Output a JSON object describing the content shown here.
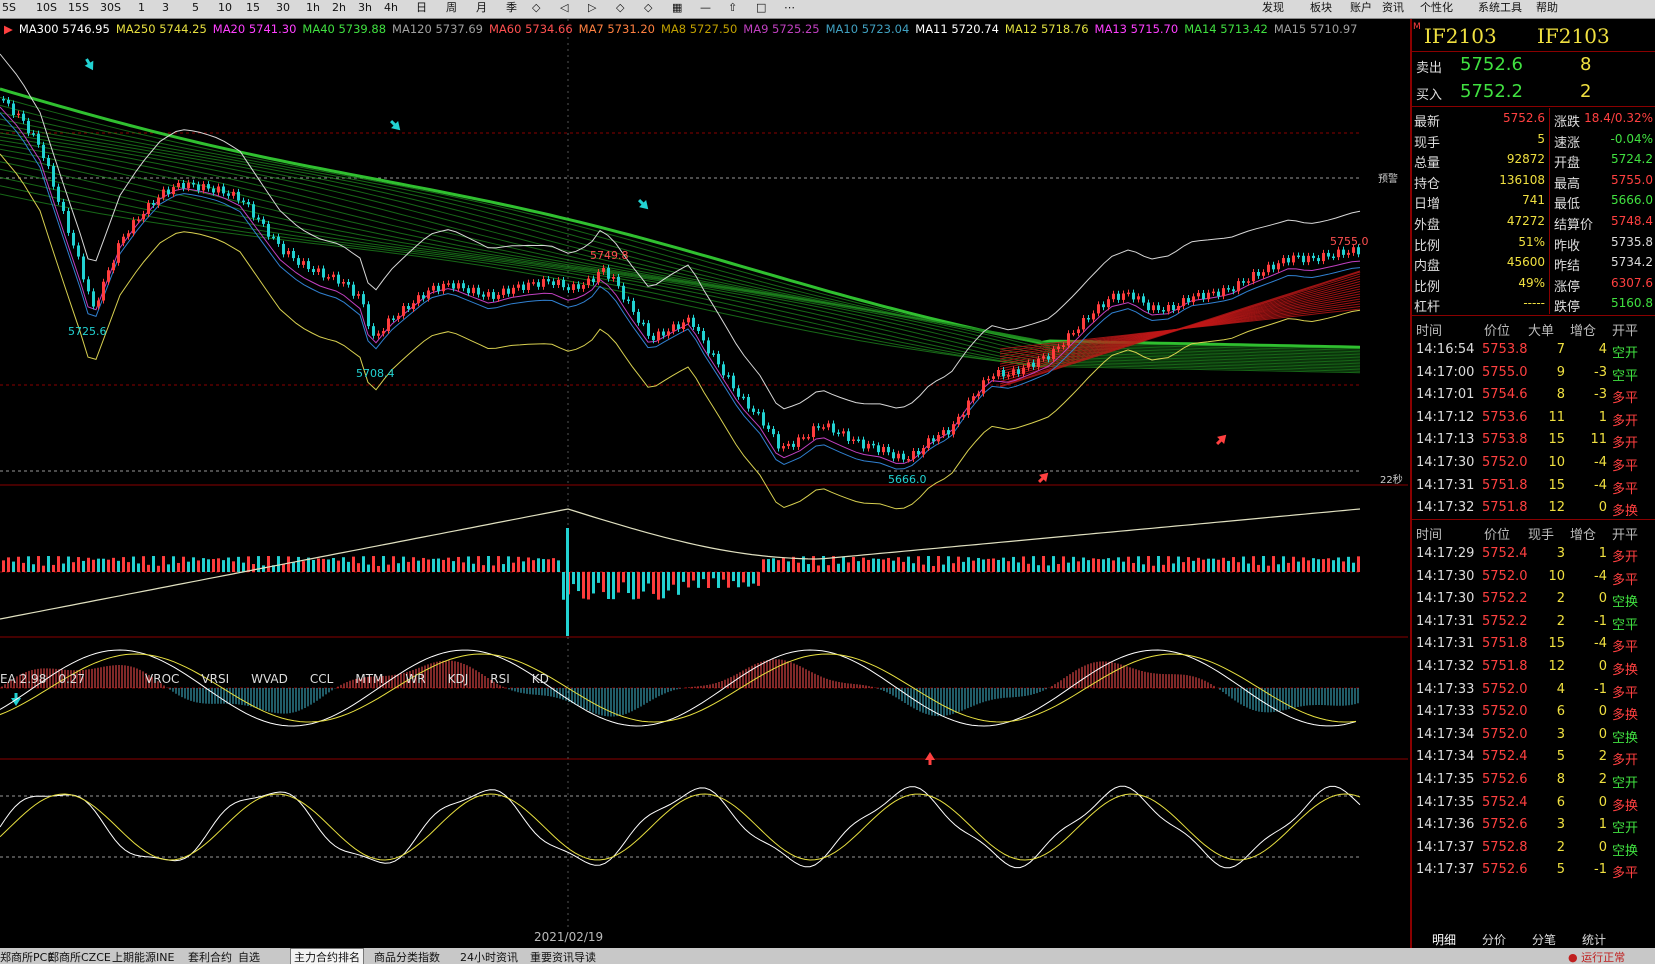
{
  "toolbar": {
    "periods": [
      "5S",
      "10S",
      "15S",
      "30S",
      "1",
      "3",
      "5",
      "10",
      "15",
      "30",
      "1h",
      "2h",
      "3h",
      "4h",
      "日",
      "周",
      "月",
      "季"
    ],
    "right_menu": [
      "发现",
      "板块",
      "账户",
      "资讯",
      "个性化",
      "系统工具",
      "帮助"
    ]
  },
  "ma_legend": [
    {
      "label": "MA300 5746.95",
      "color": "#ffffff"
    },
    {
      "label": "MA250 5744.25",
      "color": "#e8e040"
    },
    {
      "label": "MA20 5741.30",
      "color": "#ff40ff"
    },
    {
      "label": "MA40 5739.88",
      "color": "#40e040"
    },
    {
      "label": "MA120 5737.69",
      "color": "#a0a0a0"
    },
    {
      "label": "MA60 5734.66",
      "color": "#ff5050"
    },
    {
      "label": "MA7 5731.20",
      "color": "#ff8040"
    },
    {
      "label": "MA8 5727.50",
      "color": "#c0a000"
    },
    {
      "label": "MA9 5725.25",
      "color": "#c040c0"
    },
    {
      "label": "MA10 5723.04",
      "color": "#40a0c0"
    },
    {
      "label": "MA11 5720.74",
      "color": "#ffffff"
    },
    {
      "label": "MA12 5718.76",
      "color": "#e0e040"
    },
    {
      "label": "MA13 5715.70",
      "color": "#ff40ff"
    },
    {
      "label": "MA14 5713.42",
      "color": "#40e040"
    },
    {
      "label": "MA15 5710.97",
      "color": "#a0a0a0"
    }
  ],
  "price_labels": {
    "low1": "5725.6",
    "low2": "5708.4",
    "peak_mid": "5749.8",
    "low3": "5666.0",
    "high": "5755.0",
    "warn": "预警",
    "timer": "22秒"
  },
  "date_label": "2021/02/19",
  "indicator_bar": {
    "first": "EA 2.98",
    "second": "0.27",
    "names": [
      "VROC",
      "VRSI",
      "WVAD",
      "CCL",
      "MTM",
      "WR",
      "KDJ",
      "RSI",
      "KD"
    ]
  },
  "quote": {
    "code_left": "IF2103",
    "code_right": "IF2103",
    "ask_label": "卖出",
    "ask_price": "5752.6",
    "ask_vol": "8",
    "bid_label": "买入",
    "bid_price": "5752.2",
    "bid_vol": "2",
    "rows": [
      {
        "l": "最新",
        "lv": "5752.6",
        "lc": "#ff4040",
        "r": "涨跌",
        "rv": "18.4/0.32%",
        "rc": "#ff4040"
      },
      {
        "l": "现手",
        "lv": "5",
        "lc": "#f0e040",
        "r": "速涨",
        "rv": "-0.04%",
        "rc": "#40e040"
      },
      {
        "l": "总量",
        "lv": "92872",
        "lc": "#f0e040",
        "r": "开盘",
        "rv": "5724.2",
        "rc": "#40e040"
      },
      {
        "l": "持仓",
        "lv": "136108",
        "lc": "#f0e040",
        "r": "最高",
        "rv": "5755.0",
        "rc": "#ff4040"
      },
      {
        "l": "日增",
        "lv": "741",
        "lc": "#f0e040",
        "r": "最低",
        "rv": "5666.0",
        "rc": "#40e040"
      },
      {
        "l": "外盘",
        "lv": "47272",
        "lc": "#f0e040",
        "r": "结算价",
        "rv": "5748.4",
        "rc": "#ff4040"
      },
      {
        "l": "比例",
        "lv": "51%",
        "lc": "#f0e040",
        "r": "昨收",
        "rv": "5735.8",
        "rc": "#dddddd"
      },
      {
        "l": "内盘",
        "lv": "45600",
        "lc": "#f0e040",
        "r": "昨结",
        "rv": "5734.2",
        "rc": "#dddddd"
      },
      {
        "l": "比例",
        "lv": "49%",
        "lc": "#f0e040",
        "r": "涨停",
        "rv": "6307.6",
        "rc": "#ff4040"
      },
      {
        "l": "杠杆",
        "lv": "-----",
        "lc": "#f0e040",
        "r": "跌停",
        "rv": "5160.8",
        "rc": "#40e040"
      }
    ]
  },
  "big_trades": {
    "headers": [
      "时间",
      "价位",
      "大单",
      "增仓",
      "开平"
    ],
    "rows": [
      [
        "14:16:54",
        "5753.8",
        "7",
        "4",
        "空开"
      ],
      [
        "14:17:00",
        "5755.0",
        "9",
        "-3",
        "空平"
      ],
      [
        "14:17:01",
        "5754.6",
        "8",
        "-3",
        "多平"
      ],
      [
        "14:17:12",
        "5753.6",
        "11",
        "1",
        "多开"
      ],
      [
        "14:17:13",
        "5753.8",
        "15",
        "11",
        "多开"
      ],
      [
        "14:17:30",
        "5752.0",
        "10",
        "-4",
        "多平"
      ],
      [
        "14:17:31",
        "5751.8",
        "15",
        "-4",
        "多平"
      ],
      [
        "14:17:32",
        "5751.8",
        "12",
        "0",
        "多换"
      ]
    ]
  },
  "ticks": {
    "headers": [
      "时间",
      "价位",
      "现手",
      "增仓",
      "开平"
    ],
    "rows": [
      [
        "14:17:29",
        "5752.4",
        "3",
        "1",
        "多开"
      ],
      [
        "14:17:30",
        "5752.0",
        "10",
        "-4",
        "多平"
      ],
      [
        "14:17:30",
        "5752.2",
        "2",
        "0",
        "空换"
      ],
      [
        "14:17:31",
        "5752.2",
        "2",
        "-1",
        "空平"
      ],
      [
        "14:17:31",
        "5751.8",
        "15",
        "-4",
        "多平"
      ],
      [
        "14:17:32",
        "5751.8",
        "12",
        "0",
        "多换"
      ],
      [
        "14:17:33",
        "5752.0",
        "4",
        "-1",
        "多平"
      ],
      [
        "14:17:33",
        "5752.0",
        "6",
        "0",
        "多换"
      ],
      [
        "14:17:34",
        "5752.0",
        "3",
        "0",
        "空换"
      ],
      [
        "14:17:34",
        "5752.4",
        "5",
        "2",
        "多开"
      ],
      [
        "14:17:35",
        "5752.6",
        "8",
        "2",
        "空开"
      ],
      [
        "14:17:35",
        "5752.4",
        "6",
        "0",
        "多换"
      ],
      [
        "14:17:36",
        "5752.6",
        "3",
        "1",
        "空开"
      ],
      [
        "14:17:37",
        "5752.8",
        "2",
        "0",
        "空换"
      ],
      [
        "14:17:37",
        "5752.6",
        "5",
        "-1",
        "多平"
      ]
    ]
  },
  "right_tabs": [
    "明细",
    "分价",
    "分笔",
    "统计"
  ],
  "bottom_tabs": [
    "郑商所PCE",
    "郑商所CZCE",
    "上期能源INE",
    "套利合约",
    "自选",
    "主力合约排名",
    "商品分类指数",
    "24小时资讯",
    "重要资讯导读"
  ],
  "bottom_right": "运行正常",
  "colors": {
    "up": "#ff3c3c",
    "down": "#22d2d2",
    "bg": "#000000",
    "grid": "#8a0000",
    "yellow": "#f0e040",
    "green": "#40e040"
  }
}
